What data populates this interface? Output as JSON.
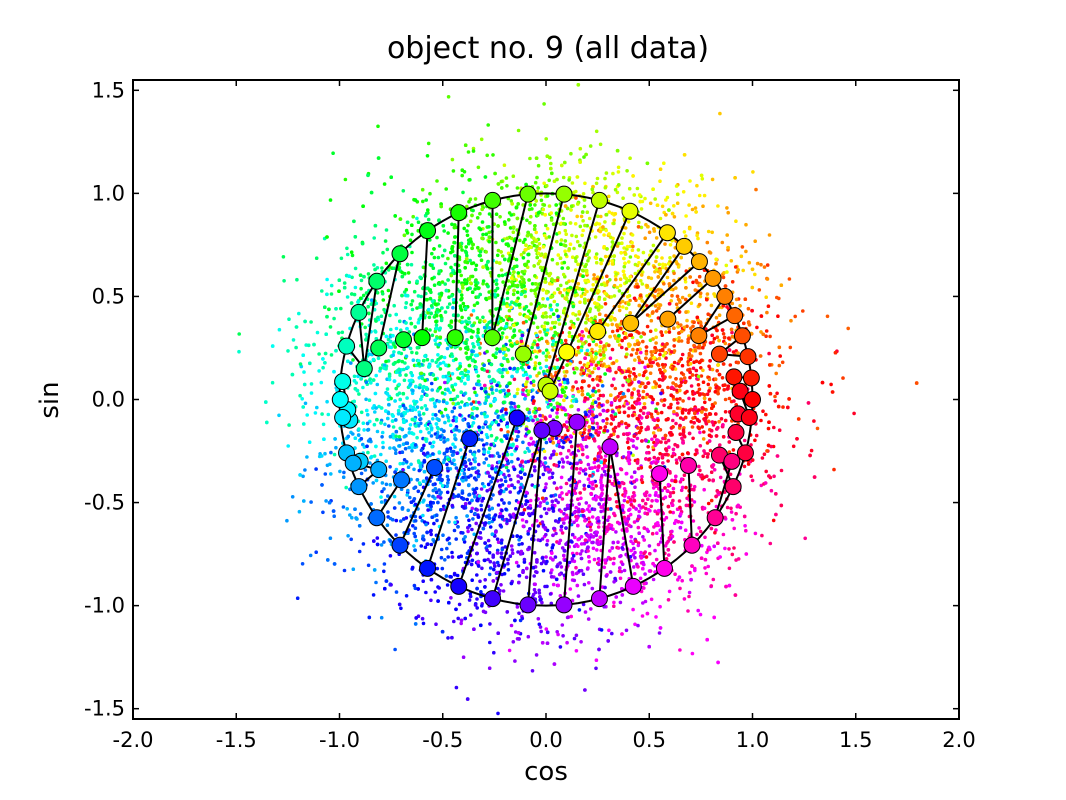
{
  "chart_data": {
    "type": "scatter",
    "title": "object no. 9 (all data)",
    "xlabel": "cos",
    "ylabel": "sin",
    "xlim": [
      -2.0,
      2.0
    ],
    "ylim": [
      -1.55,
      1.55
    ],
    "xticks": [
      {
        "value": -2.0,
        "label": "-2.0"
      },
      {
        "value": -1.5,
        "label": "-1.5"
      },
      {
        "value": -1.0,
        "label": "-1.0"
      },
      {
        "value": -0.5,
        "label": "-0.5"
      },
      {
        "value": 0.0,
        "label": "0.0"
      },
      {
        "value": 0.5,
        "label": "0.5"
      },
      {
        "value": 1.0,
        "label": "1.0"
      },
      {
        "value": 1.5,
        "label": "1.5"
      },
      {
        "value": 2.0,
        "label": "2.0"
      }
    ],
    "yticks": [
      {
        "value": 1.5,
        "label": "1.5"
      },
      {
        "value": 1.0,
        "label": "1.0"
      },
      {
        "value": 0.5,
        "label": "0.5"
      },
      {
        "value": 0.0,
        "label": "0.0"
      },
      {
        "value": -0.5,
        "label": "-0.5"
      },
      {
        "value": -1.0,
        "label": "-1.0"
      },
      {
        "value": -1.5,
        "label": "-1.5"
      }
    ],
    "grid": false,
    "legend": "none",
    "color_map": "hue by phase angle (hsv)",
    "scatter_cloud": {
      "description_count": 8000
    },
    "unit_circle_markers": [
      {
        "x": 1.0,
        "y": 0.0
      },
      {
        "x": 0.9945,
        "y": 0.1045
      },
      {
        "x": 0.9781,
        "y": 0.2079
      },
      {
        "x": 0.9511,
        "y": 0.309
      },
      {
        "x": 0.9135,
        "y": 0.4067
      },
      {
        "x": 0.866,
        "y": 0.5
      },
      {
        "x": 0.809,
        "y": 0.5878
      },
      {
        "x": 0.7431,
        "y": 0.6691
      },
      {
        "x": 0.6691,
        "y": 0.7431
      },
      {
        "x": 0.5878,
        "y": 0.809
      },
      {
        "x": 0.4067,
        "y": 0.9135
      },
      {
        "x": 0.2588,
        "y": 0.9659
      },
      {
        "x": 0.0872,
        "y": 0.9962
      },
      {
        "x": -0.0872,
        "y": 0.9962
      },
      {
        "x": -0.2588,
        "y": 0.9659
      },
      {
        "x": -0.4226,
        "y": 0.9063
      },
      {
        "x": -0.5736,
        "y": 0.8192
      },
      {
        "x": -0.7071,
        "y": 0.7071
      },
      {
        "x": -0.8192,
        "y": 0.5736
      },
      {
        "x": -0.9063,
        "y": 0.4226
      },
      {
        "x": -0.9659,
        "y": 0.2588
      },
      {
        "x": -0.9848,
        "y": 0.0872
      },
      {
        "x": -0.9962,
        "y": 0.0
      },
      {
        "x": -0.9848,
        "y": -0.0872
      },
      {
        "x": -0.9659,
        "y": -0.2588
      },
      {
        "x": -0.9336,
        "y": -0.309
      },
      {
        "x": -0.9063,
        "y": -0.4226
      },
      {
        "x": -0.8192,
        "y": -0.5736
      },
      {
        "x": -0.7071,
        "y": -0.7071
      },
      {
        "x": -0.5736,
        "y": -0.8192
      },
      {
        "x": -0.4226,
        "y": -0.9063
      },
      {
        "x": -0.2588,
        "y": -0.9659
      },
      {
        "x": -0.0872,
        "y": -0.9962
      },
      {
        "x": 0.0872,
        "y": -0.9962
      },
      {
        "x": 0.2588,
        "y": -0.9659
      },
      {
        "x": 0.4226,
        "y": -0.9063
      },
      {
        "x": 0.5736,
        "y": -0.8192
      },
      {
        "x": 0.7071,
        "y": -0.7071
      },
      {
        "x": 0.8192,
        "y": -0.5736
      },
      {
        "x": 0.9063,
        "y": -0.4226
      },
      {
        "x": 0.9659,
        "y": -0.2588
      },
      {
        "x": 0.9848,
        "y": -0.0872
      }
    ],
    "inner_markers": [
      {
        "x": 0.0,
        "y": 0.07,
        "h": 75
      },
      {
        "x": 0.1,
        "y": 0.23,
        "h": 60
      },
      {
        "x": -0.11,
        "y": 0.22,
        "h": 85
      },
      {
        "x": 0.25,
        "y": 0.33,
        "h": 55
      },
      {
        "x": 0.41,
        "y": 0.37,
        "h": 45
      },
      {
        "x": 0.59,
        "y": 0.39,
        "h": 38
      },
      {
        "x": 0.74,
        "y": 0.31,
        "h": 30
      },
      {
        "x": 0.84,
        "y": 0.22,
        "h": 15
      },
      {
        "x": 0.91,
        "y": 0.11,
        "h": 5
      },
      {
        "x": 0.94,
        "y": 0.04,
        "h": 355
      },
      {
        "x": 0.93,
        "y": -0.07,
        "h": 350
      },
      {
        "x": 0.92,
        "y": -0.16,
        "h": 345
      },
      {
        "x": 0.84,
        "y": -0.27,
        "h": 335
      },
      {
        "x": 0.9,
        "y": -0.3,
        "h": 330
      },
      {
        "x": 0.69,
        "y": -0.32,
        "h": 320
      },
      {
        "x": 0.55,
        "y": -0.36,
        "h": 305
      },
      {
        "x": 0.31,
        "y": -0.23,
        "h": 285
      },
      {
        "x": 0.15,
        "y": -0.11,
        "h": 275
      },
      {
        "x": 0.04,
        "y": -0.14,
        "h": 268
      },
      {
        "x": -0.02,
        "y": -0.15,
        "h": 262
      },
      {
        "x": -0.14,
        "y": -0.09,
        "h": 245
      },
      {
        "x": -0.37,
        "y": -0.19,
        "h": 232
      },
      {
        "x": -0.54,
        "y": -0.33,
        "h": 222
      },
      {
        "x": -0.7,
        "y": -0.39,
        "h": 212
      },
      {
        "x": -0.81,
        "y": -0.34,
        "h": 200
      },
      {
        "x": -0.9,
        "y": -0.3,
        "h": 192
      },
      {
        "x": -0.95,
        "y": -0.1,
        "h": 185
      },
      {
        "x": -0.96,
        "y": -0.05,
        "h": 182
      },
      {
        "x": -0.88,
        "y": 0.15,
        "h": 150
      },
      {
        "x": -0.81,
        "y": 0.25,
        "h": 140
      },
      {
        "x": -0.69,
        "y": 0.29,
        "h": 130
      },
      {
        "x": -0.6,
        "y": 0.3,
        "h": 120
      },
      {
        "x": -0.44,
        "y": 0.3,
        "h": 110
      },
      {
        "x": -0.26,
        "y": 0.3,
        "h": 100
      },
      {
        "x": 0.02,
        "y": 0.04,
        "h": 72
      }
    ]
  }
}
